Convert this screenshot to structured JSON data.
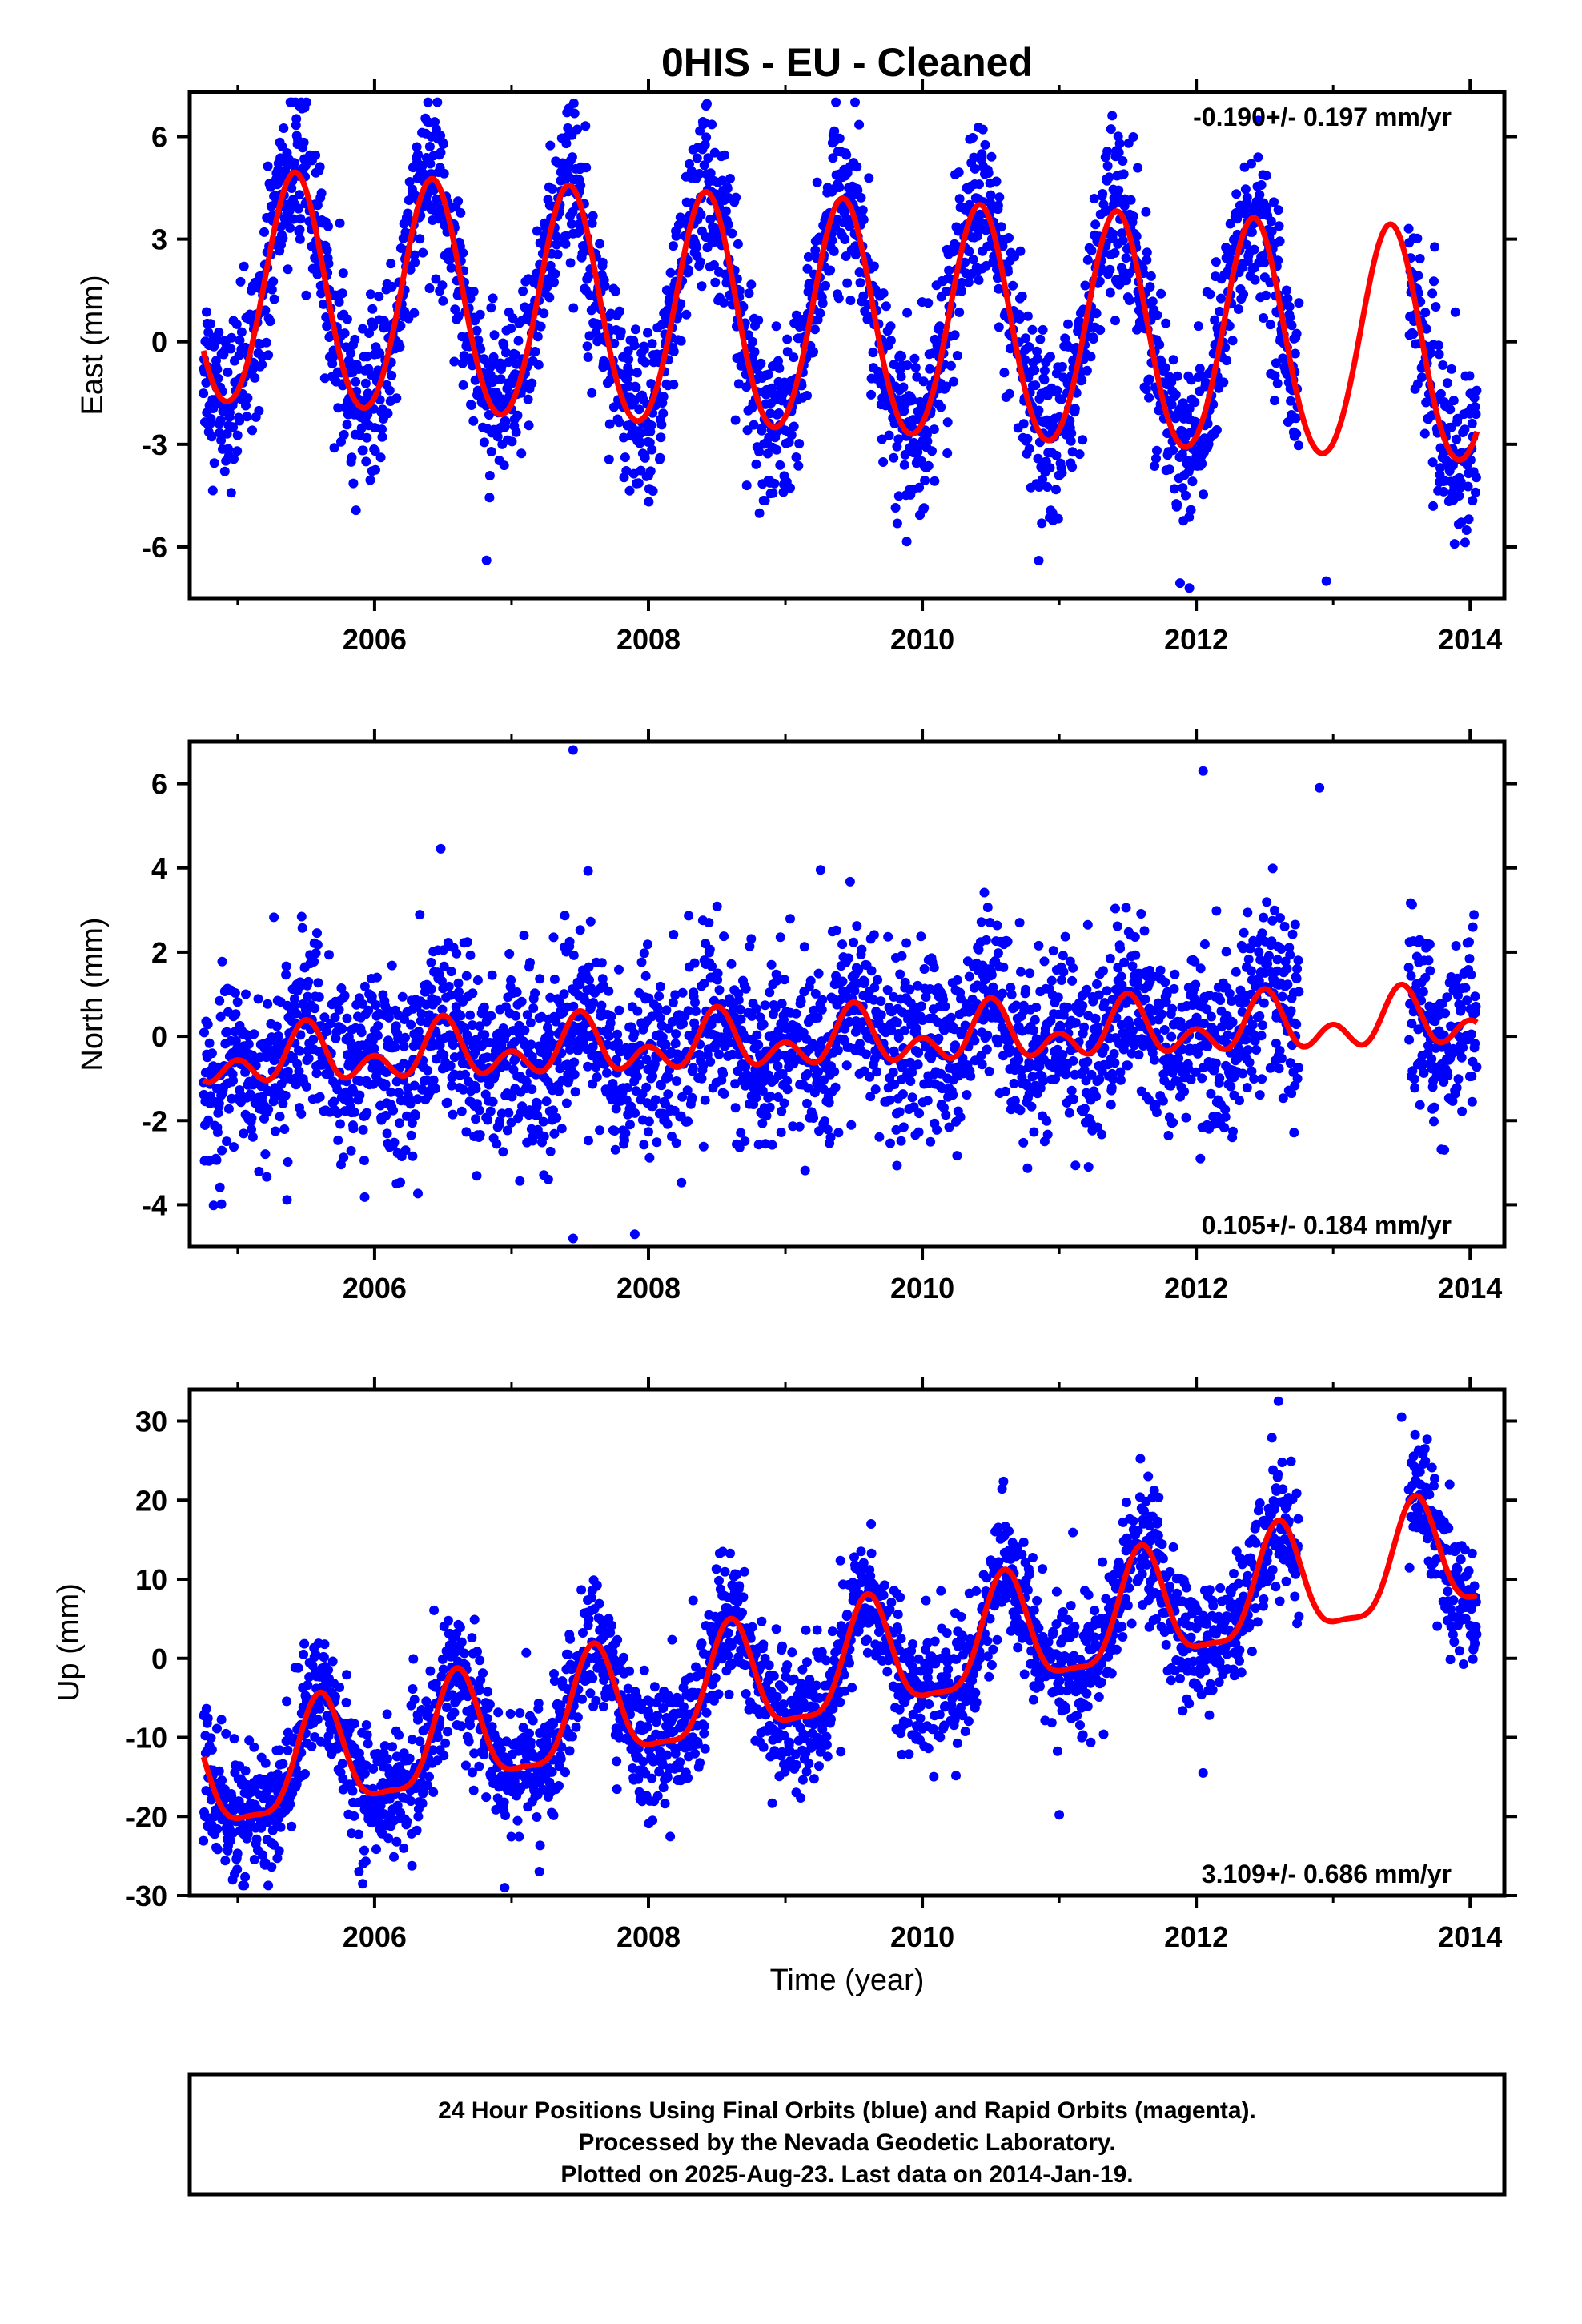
{
  "title": "0HIS  - EU - Cleaned",
  "xlabel": "Time (year)",
  "footer": [
    "24 Hour Positions Using Final Orbits (blue) and Rapid Orbits (magenta).",
    "Processed by the Nevada Geodetic Laboratory.",
    "Plotted on 2025-Aug-23. Last data on 2014-Jan-19."
  ],
  "colors": {
    "points": "#0000ff",
    "model": "#ff0000",
    "axes": "#000000"
  },
  "chart_data": [
    {
      "type": "scatter",
      "name": "east",
      "ylabel": "East (mm)",
      "rate_label": "-0.190+/- 0.197 mm/yr",
      "rate_position": "top-right",
      "xlim": [
        2004.65,
        2014.25
      ],
      "ylim": [
        -7.5,
        7.3
      ],
      "xticks": [
        2006,
        2008,
        2010,
        2012,
        2014
      ],
      "xtick_labels": [
        "2006",
        "2008",
        "2010",
        "2012",
        "2014"
      ],
      "yticks": [
        -6,
        -3,
        0,
        3,
        6
      ],
      "ytick_labels": [
        "-6",
        "-3",
        "0",
        "3",
        "6"
      ],
      "data_range": [
        2004.75,
        2014.05
      ],
      "gaps": [
        [
          2012.75,
          2013.55
        ]
      ],
      "model": {
        "offset": 0.6,
        "rate": -0.19,
        "annual_amp": 3.4,
        "annual_peak": 2005.42,
        "semiannual_amp": 0.2,
        "ref_year": 2009.4
      },
      "scatter_sd": 1.2,
      "outliers": [
        [
          2005.45,
          6.9
        ],
        [
          2008.42,
          6.9
        ],
        [
          2011.95,
          -7.2
        ],
        [
          2012.95,
          -7.0
        ],
        [
          2010.85,
          -6.4
        ]
      ]
    },
    {
      "type": "scatter",
      "name": "north",
      "ylabel": "North (mm)",
      "rate_label": "0.105+/- 0.184 mm/yr",
      "rate_position": "bottom-right",
      "xlim": [
        2004.65,
        2014.25
      ],
      "ylim": [
        -5.0,
        7.0
      ],
      "xticks": [
        2006,
        2008,
        2010,
        2012,
        2014
      ],
      "xtick_labels": [
        "2006",
        "2008",
        "2010",
        "2012",
        "2014"
      ],
      "yticks": [
        -4,
        -2,
        0,
        2,
        4,
        6
      ],
      "ytick_labels": [
        "-4",
        "-2",
        "0",
        "2",
        "4",
        "6"
      ],
      "data_range": [
        2004.75,
        2014.05
      ],
      "gaps": [
        [
          2012.75,
          2013.55
        ]
      ],
      "model": {
        "offset": -0.1,
        "rate": 0.105,
        "annual_amp": 0.45,
        "annual_peak": 2005.5,
        "semiannual_amp": 0.45,
        "ref_year": 2009.4
      },
      "scatter_sd": 1.05,
      "outliers": [
        [
          2007.45,
          6.8
        ],
        [
          2007.45,
          -4.8
        ],
        [
          2012.05,
          6.3
        ],
        [
          2012.9,
          5.9
        ],
        [
          2007.9,
          -4.7
        ]
      ]
    },
    {
      "type": "scatter",
      "name": "up",
      "ylabel": "Up (mm)",
      "rate_label": "3.109+/- 0.686 mm/yr",
      "rate_position": "bottom-right",
      "xlim": [
        2004.65,
        2014.25
      ],
      "ylim": [
        -30,
        34
      ],
      "xticks": [
        2006,
        2008,
        2010,
        2012,
        2014
      ],
      "xtick_labels": [
        "2006",
        "2008",
        "2010",
        "2012",
        "2014"
      ],
      "yticks": [
        -30,
        -20,
        -10,
        0,
        10,
        20,
        30
      ],
      "ytick_labels": [
        "-30",
        "-20",
        "-10",
        "0",
        "10",
        "20",
        "30"
      ],
      "data_range": [
        2004.75,
        2014.05
      ],
      "gaps": [
        [
          2012.75,
          2013.55
        ]
      ],
      "model": {
        "offset": -1.5,
        "rate": 3.109,
        "annual_amp": 7.0,
        "annual_peak": 2005.6,
        "semiannual_amp": 2.0,
        "ref_year": 2009.4
      },
      "scatter_sd": 4.0,
      "outliers": [
        [
          2012.6,
          32.5
        ],
        [
          2006.95,
          -29.0
        ],
        [
          2013.5,
          30.5
        ],
        [
          2011.0,
          -19.8
        ],
        [
          2012.05,
          -14.5
        ]
      ]
    }
  ]
}
